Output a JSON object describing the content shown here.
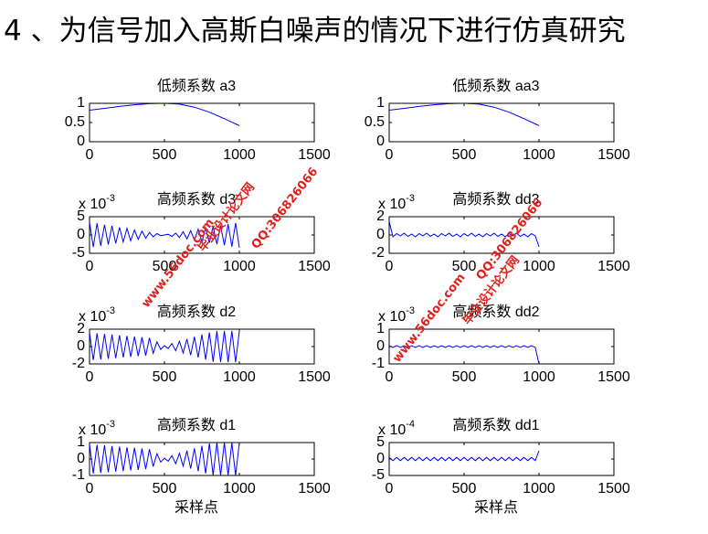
{
  "heading": "4 、为信号加入高斯白噪声的情况下进行仿真研究",
  "watermarks": [
    "毕业设计论文网",
    "www.56doc.com",
    "QQ:306826066",
    "毕业设计论文网",
    "www.56doc.com",
    "QQ:306826066"
  ],
  "chart_data": [
    {
      "type": "line",
      "title": "低频系数 a3",
      "color": "#0000ff",
      "x": [
        0,
        100,
        200,
        300,
        400,
        500,
        600,
        700,
        800,
        900,
        1000
      ],
      "values": [
        0.82,
        0.87,
        0.92,
        0.96,
        0.99,
        1.0,
        0.98,
        0.9,
        0.77,
        0.6,
        0.42
      ],
      "xlim": [
        0,
        1500
      ],
      "xticks": [
        0,
        500,
        1000,
        1500
      ],
      "ylim": [
        0,
        1
      ],
      "yticks": [
        0,
        0.5,
        1
      ]
    },
    {
      "type": "line",
      "title": "低频系数 aa3",
      "color": "#0000ff",
      "x": [
        0,
        100,
        200,
        300,
        400,
        500,
        600,
        700,
        800,
        900,
        1000
      ],
      "values": [
        0.82,
        0.87,
        0.92,
        0.96,
        0.99,
        1.0,
        0.98,
        0.9,
        0.77,
        0.6,
        0.42
      ],
      "xlim": [
        0,
        1500
      ],
      "xticks": [
        0,
        500,
        1000,
        1500
      ],
      "ylim": [
        0,
        1
      ],
      "yticks": [
        0,
        0.5,
        1
      ]
    },
    {
      "type": "line",
      "title": "高频系数 d3",
      "color": "#0000ff",
      "y_multiplier": {
        "base": "x 10",
        "exponent": "-3"
      },
      "x": [
        0,
        25,
        50,
        75,
        100,
        125,
        150,
        175,
        200,
        225,
        250,
        275,
        300,
        325,
        350,
        375,
        400,
        425,
        450,
        475,
        500,
        525,
        550,
        575,
        600,
        625,
        650,
        675,
        700,
        725,
        750,
        775,
        800,
        825,
        850,
        875,
        900,
        925,
        950,
        975,
        1000
      ],
      "values": [
        3.5,
        -3.3,
        3.2,
        -3.0,
        2.8,
        -2.6,
        2.5,
        -2.3,
        2.1,
        -1.9,
        1.8,
        -1.6,
        1.4,
        -1.2,
        1.1,
        -0.9,
        0.7,
        -0.5,
        0.4,
        -0.2,
        0,
        0.2,
        -0.4,
        0.5,
        -0.7,
        0.9,
        -1.1,
        1.2,
        -1.4,
        1.6,
        -1.8,
        1.9,
        -2.1,
        2.3,
        -2.5,
        2.6,
        -2.8,
        3.0,
        -3.2,
        3.3,
        -3.5
      ],
      "xlim": [
        0,
        1500
      ],
      "xticks": [
        0,
        500,
        1000,
        1500
      ],
      "ylim": [
        -5,
        5
      ],
      "yticks": [
        -5,
        0,
        5
      ]
    },
    {
      "type": "line",
      "title": "高频系数 dd3",
      "color": "#0000ff",
      "y_multiplier": {
        "base": "x 10",
        "exponent": "-3"
      },
      "x": [
        0,
        25,
        50,
        75,
        100,
        125,
        150,
        175,
        200,
        225,
        250,
        275,
        300,
        325,
        350,
        375,
        400,
        425,
        450,
        475,
        500,
        525,
        550,
        575,
        600,
        625,
        650,
        675,
        700,
        725,
        750,
        775,
        800,
        825,
        850,
        875,
        900,
        925,
        950,
        975,
        1000
      ],
      "values": [
        1.5,
        -0.2,
        0.15,
        -0.1,
        0.2,
        -0.15,
        0.1,
        -0.2,
        0.15,
        -0.1,
        0.2,
        -0.15,
        0.1,
        -0.2,
        0.15,
        -0.1,
        0.2,
        -0.15,
        0.1,
        -0.2,
        0.15,
        -0.1,
        0.2,
        -0.15,
        0.1,
        -0.2,
        0.15,
        -0.1,
        0.2,
        -0.15,
        0.1,
        -0.2,
        0.15,
        -0.1,
        0.2,
        -0.15,
        0.1,
        -0.2,
        0.15,
        -0.1,
        -1.3
      ],
      "xlim": [
        0,
        1500
      ],
      "xticks": [
        0,
        500,
        1000,
        1500
      ],
      "ylim": [
        -2,
        2
      ],
      "yticks": [
        -2,
        0,
        2
      ]
    },
    {
      "type": "line",
      "title": "高频系数 d2",
      "color": "#0000ff",
      "y_multiplier": {
        "base": "x 10",
        "exponent": "-3"
      },
      "x": [
        0,
        25,
        50,
        75,
        100,
        125,
        150,
        175,
        200,
        225,
        250,
        275,
        300,
        325,
        350,
        375,
        400,
        425,
        450,
        475,
        500,
        525,
        550,
        575,
        600,
        625,
        650,
        675,
        700,
        725,
        750,
        775,
        800,
        825,
        850,
        875,
        900,
        925,
        950,
        975,
        1000
      ],
      "values": [
        1.6,
        -1.56,
        1.53,
        -1.49,
        1.45,
        -1.41,
        1.38,
        -1.34,
        1.3,
        -1.26,
        1.23,
        -1.19,
        1.15,
        -1.11,
        1.08,
        -1.04,
        1.0,
        -0.78,
        0.55,
        -0.33,
        0.1,
        -0.23,
        0.35,
        -0.48,
        0.61,
        -0.74,
        0.87,
        -0.99,
        1.12,
        -1.25,
        1.38,
        -1.51,
        1.63,
        -1.76,
        1.8,
        -1.8,
        1.8,
        -1.8,
        1.8,
        -1.8,
        1.8
      ],
      "xlim": [
        0,
        1500
      ],
      "xticks": [
        0,
        500,
        1000,
        1500
      ],
      "ylim": [
        -2,
        2
      ],
      "yticks": [
        -2,
        0,
        2
      ]
    },
    {
      "type": "line",
      "title": "高频系数 dd2",
      "color": "#0000ff",
      "y_multiplier": {
        "base": "x 10",
        "exponent": "-3"
      },
      "x": [
        0,
        25,
        50,
        75,
        100,
        125,
        150,
        175,
        200,
        225,
        250,
        275,
        300,
        325,
        350,
        375,
        400,
        425,
        450,
        475,
        500,
        525,
        550,
        575,
        600,
        625,
        650,
        675,
        700,
        725,
        750,
        775,
        800,
        825,
        850,
        875,
        900,
        925,
        950,
        975,
        1000
      ],
      "values": [
        0.05,
        -0.05,
        0.05,
        -0.05,
        0.05,
        -0.05,
        0.05,
        -0.05,
        0.05,
        -0.05,
        0.05,
        -0.05,
        0.05,
        -0.05,
        0.05,
        -0.05,
        0.05,
        -0.05,
        0.05,
        -0.05,
        0.05,
        -0.05,
        0.05,
        -0.05,
        0.05,
        -0.05,
        0.05,
        -0.05,
        0.05,
        -0.05,
        0.05,
        -0.05,
        0.05,
        -0.05,
        0.05,
        -0.05,
        0.05,
        -0.05,
        0.05,
        -0.05,
        -1.0
      ],
      "xlim": [
        0,
        1500
      ],
      "xticks": [
        0,
        500,
        1000,
        1500
      ],
      "ylim": [
        -1,
        1
      ],
      "yticks": [
        -1,
        0,
        1
      ]
    },
    {
      "type": "line",
      "title": "高频系数 d1",
      "color": "#0000ff",
      "y_multiplier": {
        "base": "x 10",
        "exponent": "-3"
      },
      "xlabel": "采样点",
      "x": [
        0,
        25,
        50,
        75,
        100,
        125,
        150,
        175,
        200,
        225,
        250,
        275,
        300,
        325,
        350,
        375,
        400,
        425,
        450,
        475,
        500,
        525,
        550,
        575,
        600,
        625,
        650,
        675,
        700,
        725,
        750,
        775,
        800,
        825,
        850,
        875,
        900,
        925,
        950,
        975,
        1000
      ],
      "values": [
        0.9,
        -0.88,
        0.86,
        -0.84,
        0.83,
        -0.81,
        0.79,
        -0.77,
        0.75,
        -0.73,
        0.71,
        -0.69,
        0.68,
        -0.66,
        0.64,
        -0.62,
        0.6,
        -0.46,
        0.33,
        -0.19,
        0.05,
        -0.13,
        0.2,
        -0.28,
        0.35,
        -0.43,
        0.5,
        -0.58,
        0.65,
        -0.73,
        0.8,
        -0.88,
        0.95,
        -0.98,
        1.0,
        -1.0,
        1.0,
        -1.0,
        1.0,
        -1.0,
        1.0
      ],
      "xlim": [
        0,
        1500
      ],
      "xticks": [
        0,
        500,
        1000,
        1500
      ],
      "ylim": [
        -1,
        1
      ],
      "yticks": [
        -1,
        0,
        1
      ]
    },
    {
      "type": "line",
      "title": "高频系数 dd1",
      "color": "#0000ff",
      "y_multiplier": {
        "base": "x 10",
        "exponent": "-4"
      },
      "xlabel": "采样点",
      "x": [
        0,
        25,
        50,
        75,
        100,
        125,
        150,
        175,
        200,
        225,
        250,
        275,
        300,
        325,
        350,
        375,
        400,
        425,
        450,
        475,
        500,
        525,
        550,
        575,
        600,
        625,
        650,
        675,
        700,
        725,
        750,
        775,
        800,
        825,
        850,
        875,
        900,
        925,
        950,
        975,
        1000
      ],
      "values": [
        0.5,
        -0.5,
        0.5,
        -0.5,
        0.5,
        -0.5,
        0.5,
        -0.5,
        0.5,
        -0.5,
        0.5,
        -0.5,
        0.5,
        -0.5,
        0.5,
        -0.5,
        0.5,
        -0.5,
        0.5,
        -0.5,
        0.5,
        -0.5,
        0.5,
        -0.5,
        0.5,
        -0.5,
        0.5,
        -0.5,
        0.5,
        -0.5,
        0.5,
        -0.5,
        0.5,
        -0.5,
        0.5,
        -0.5,
        0.5,
        -0.5,
        0.5,
        -0.5,
        2.5
      ],
      "xlim": [
        0,
        1500
      ],
      "xticks": [
        0,
        500,
        1000,
        1500
      ],
      "ylim": [
        -5,
        5
      ],
      "yticks": [
        -5,
        0,
        5
      ]
    }
  ]
}
